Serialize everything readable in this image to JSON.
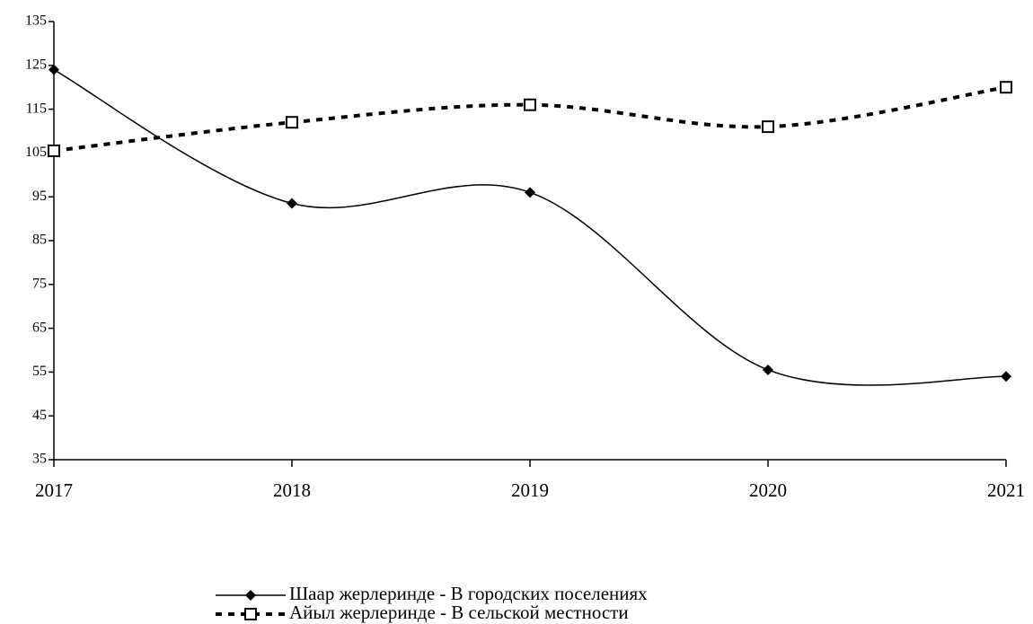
{
  "chart_data": {
    "type": "line",
    "categories": [
      "2017",
      "2018",
      "2019",
      "2020",
      "2021"
    ],
    "series": [
      {
        "name": "Шаар жерлеринде  - В городских поселениях",
        "color": "#000000",
        "line_style": "solid",
        "marker": "diamond",
        "values": [
          124,
          93.5,
          96,
          55.5,
          54
        ]
      },
      {
        "name": "Айыл жерлеринде - В сельской местности",
        "color": "#000000",
        "line_style": "dashed",
        "marker": "square",
        "values": [
          105.5,
          112,
          116,
          111,
          120
        ]
      }
    ],
    "ylim": [
      35,
      135
    ],
    "yticks": [
      35,
      45,
      55,
      65,
      75,
      85,
      95,
      105,
      115,
      125,
      135
    ],
    "smooth": true,
    "grid": false,
    "legend": "bottom"
  }
}
